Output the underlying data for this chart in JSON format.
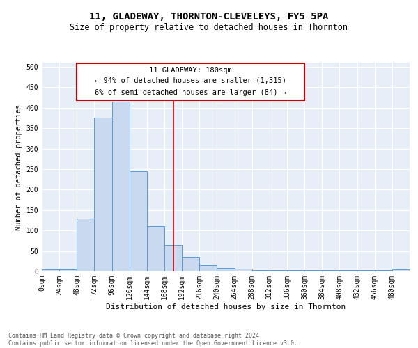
{
  "title": "11, GLADEWAY, THORNTON-CLEVELEYS, FY5 5PA",
  "subtitle": "Size of property relative to detached houses in Thornton",
  "xlabel": "Distribution of detached houses by size in Thornton",
  "ylabel": "Number of detached properties",
  "footer_line1": "Contains HM Land Registry data © Crown copyright and database right 2024.",
  "footer_line2": "Contains public sector information licensed under the Open Government Licence v3.0.",
  "annotation_line1": "11 GLADEWAY: 180sqm",
  "annotation_line2": "← 94% of detached houses are smaller (1,315)",
  "annotation_line3": "6% of semi-detached houses are larger (84) →",
  "property_line_x": 180,
  "bar_edges": [
    0,
    24,
    48,
    72,
    96,
    120,
    144,
    168,
    192,
    216,
    240,
    264,
    288,
    312,
    336,
    360,
    384,
    408,
    432,
    456,
    480
  ],
  "bar_heights": [
    5,
    5,
    130,
    375,
    415,
    245,
    110,
    65,
    35,
    15,
    8,
    6,
    3,
    3,
    3,
    3,
    3,
    3,
    3,
    3,
    5
  ],
  "bar_fill_color": "#c9d9f0",
  "bar_edge_color": "#5b9bd5",
  "background_color": "#e8eef7",
  "grid_color": "#ffffff",
  "annotation_box_color": "#cc0000",
  "property_line_color": "#cc0000",
  "ylim": [
    0,
    510
  ],
  "xlim": [
    0,
    504
  ],
  "title_fontsize": 10,
  "subtitle_fontsize": 8.5,
  "xlabel_fontsize": 8,
  "ylabel_fontsize": 7.5,
  "tick_fontsize": 7,
  "annotation_fontsize": 7.5,
  "footer_fontsize": 6
}
